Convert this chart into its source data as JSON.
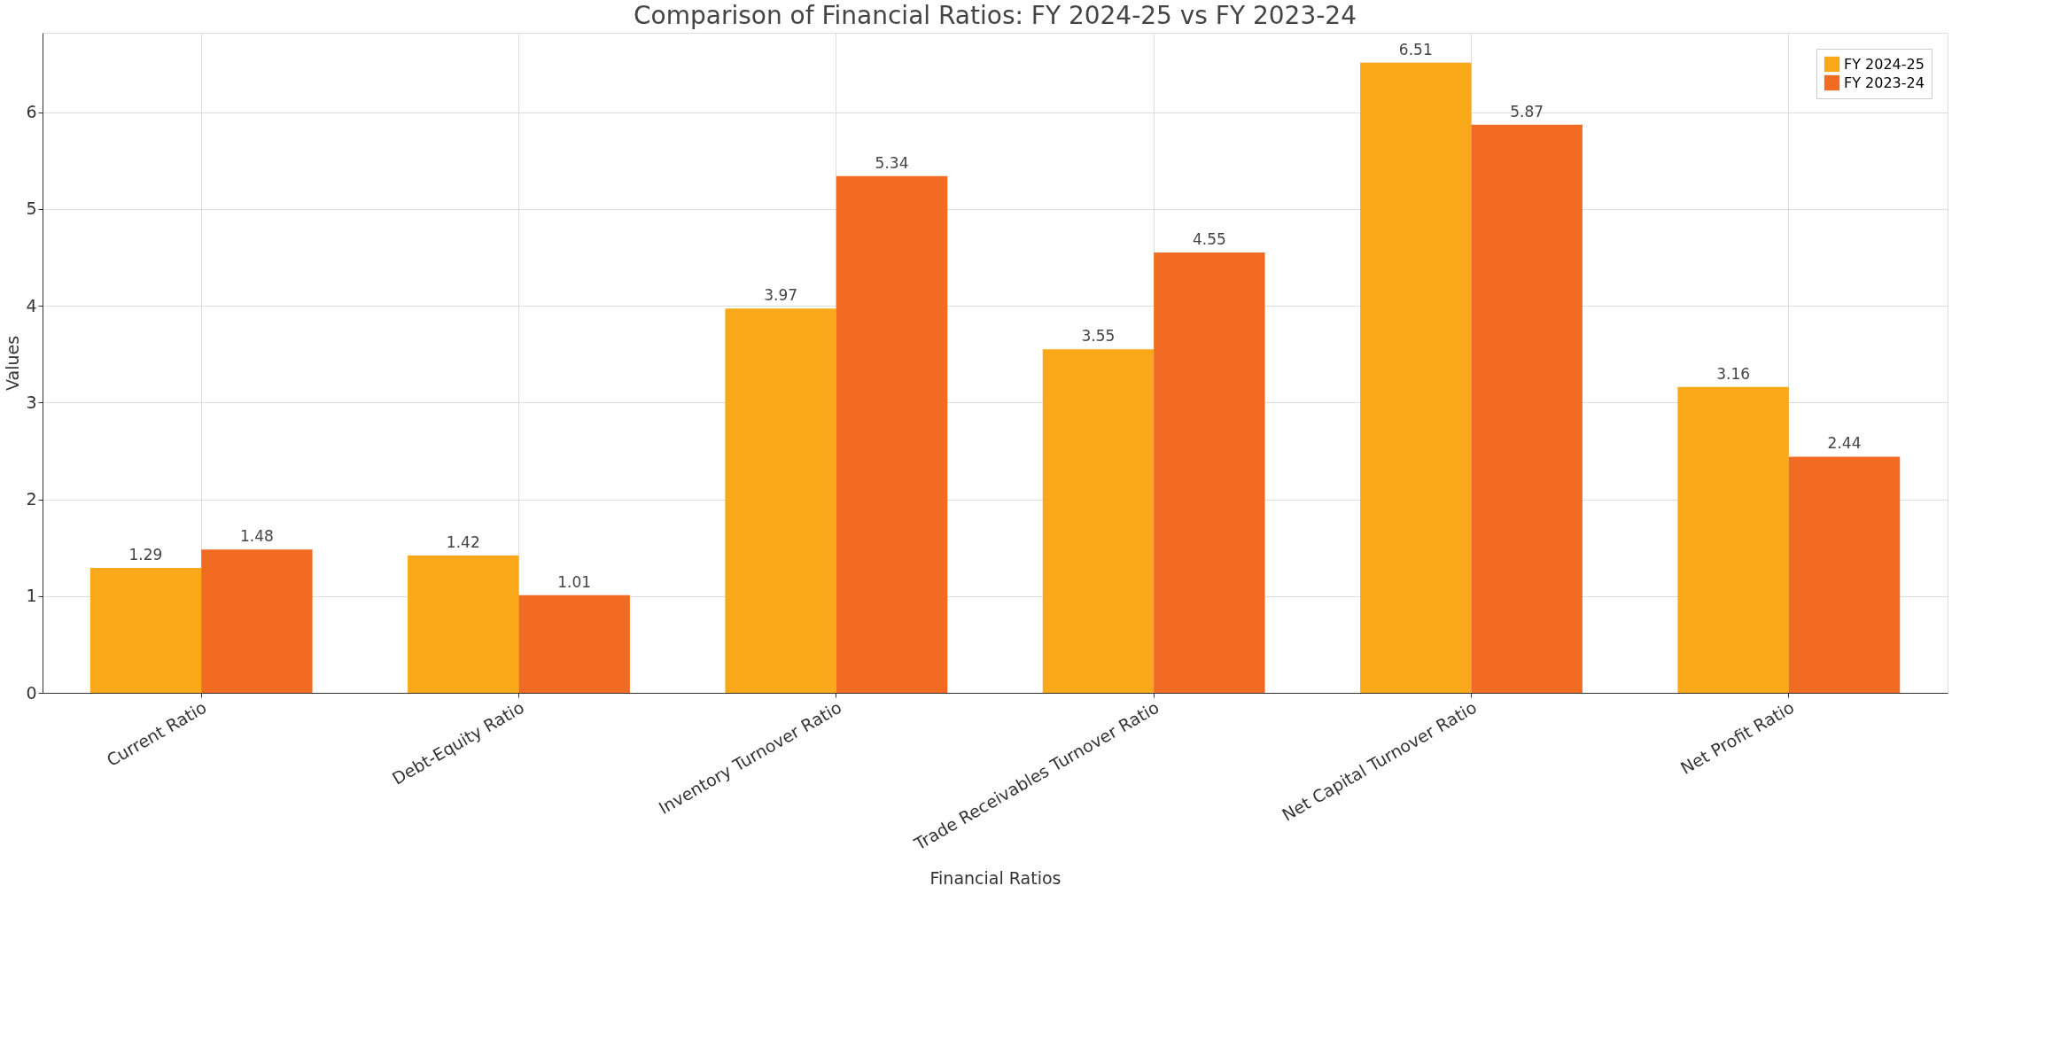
{
  "chart_data": {
    "type": "bar",
    "title": "Comparison of Financial Ratios: FY 2024-25 vs FY 2023-24",
    "xlabel": "Financial Ratios",
    "ylabel": "Values",
    "categories": [
      "Current Ratio",
      "Debt-Equity Ratio",
      "Inventory Turnover Ratio",
      "Trade Receivables Turnover Ratio",
      "Net Capital Turnover Ratio",
      "Net Profit Ratio"
    ],
    "series": [
      {
        "name": "FY 2024-25",
        "color": "#f9a81a",
        "values": [
          1.29,
          1.42,
          3.97,
          3.55,
          6.51,
          3.16
        ]
      },
      {
        "name": "FY 2023-24",
        "color": "#f26b22",
        "values": [
          1.48,
          1.01,
          5.34,
          4.55,
          5.87,
          2.44
        ]
      }
    ],
    "ylim": [
      0,
      6.82
    ],
    "yticks": [
      0,
      1,
      2,
      3,
      4,
      5,
      6
    ],
    "grid": true,
    "legend": "top right",
    "data_labels": true
  }
}
